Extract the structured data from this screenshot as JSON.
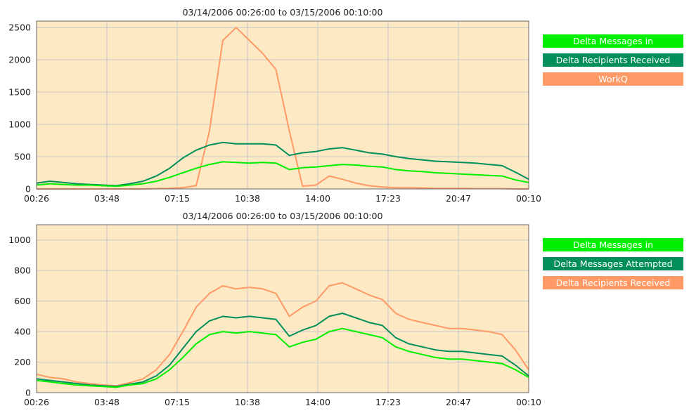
{
  "chart_data": [
    {
      "type": "line",
      "title": "03/14/2006 00:26:00 to 03/15/2006 00:10:00",
      "x": [
        "00:26",
        "01:00",
        "01:40",
        "02:20",
        "03:00",
        "03:48",
        "04:20",
        "05:00",
        "05:40",
        "06:20",
        "07:15",
        "08:00",
        "08:40",
        "09:20",
        "10:00",
        "10:38",
        "11:10",
        "11:40",
        "12:20",
        "12:40",
        "13:00",
        "13:20",
        "14:00",
        "14:40",
        "15:20",
        "16:00",
        "16:40",
        "17:23",
        "18:00",
        "18:40",
        "19:20",
        "20:00",
        "20:47",
        "21:20",
        "22:00",
        "22:40",
        "23:20",
        "00:10"
      ],
      "x_ticks": [
        "00:26",
        "03:48",
        "07:15",
        "10:38",
        "14:00",
        "17:23",
        "20:47",
        "00:10"
      ],
      "ylim": [
        0,
        2600
      ],
      "y_ticks": [
        0,
        500,
        1000,
        1500,
        2000,
        2500
      ],
      "grid": true,
      "legend_position": "right",
      "series": [
        {
          "name": "Delta Messages in",
          "color": "#00ee00",
          "values": [
            60,
            80,
            70,
            60,
            60,
            50,
            40,
            60,
            80,
            120,
            180,
            250,
            320,
            380,
            420,
            410,
            400,
            410,
            400,
            300,
            330,
            340,
            360,
            380,
            370,
            350,
            340,
            300,
            280,
            270,
            250,
            240,
            230,
            220,
            210,
            200,
            140,
            100
          ]
        },
        {
          "name": "Delta Recipients Received",
          "color": "#008f5a",
          "values": [
            90,
            120,
            100,
            80,
            70,
            60,
            50,
            80,
            120,
            200,
            320,
            480,
            600,
            680,
            720,
            700,
            700,
            700,
            680,
            520,
            560,
            580,
            620,
            640,
            600,
            560,
            540,
            500,
            470,
            450,
            430,
            420,
            410,
            400,
            380,
            360,
            260,
            150
          ]
        },
        {
          "name": "WorkQ",
          "color": "#ff9966",
          "values": [
            0,
            0,
            0,
            0,
            0,
            0,
            0,
            0,
            0,
            5,
            10,
            20,
            50,
            900,
            2300,
            2500,
            2300,
            2100,
            1850,
            900,
            40,
            60,
            200,
            150,
            90,
            50,
            30,
            20,
            20,
            15,
            10,
            10,
            10,
            5,
            5,
            5,
            0,
            0
          ]
        }
      ]
    },
    {
      "type": "line",
      "title": "03/14/2006 00:26:00 to 03/15/2006 00:10:00",
      "x": [
        "00:26",
        "01:00",
        "01:40",
        "02:20",
        "03:00",
        "03:48",
        "04:20",
        "05:00",
        "05:40",
        "06:20",
        "07:15",
        "08:00",
        "08:40",
        "09:20",
        "10:00",
        "10:38",
        "11:10",
        "11:40",
        "12:20",
        "12:40",
        "13:00",
        "13:20",
        "14:00",
        "14:40",
        "15:20",
        "16:00",
        "16:40",
        "17:23",
        "18:00",
        "18:40",
        "19:20",
        "20:00",
        "20:47",
        "21:20",
        "22:00",
        "22:40",
        "23:20",
        "00:10"
      ],
      "x_ticks": [
        "00:26",
        "03:48",
        "07:15",
        "10:38",
        "14:00",
        "17:23",
        "20:47",
        "00:10"
      ],
      "ylim": [
        0,
        1100
      ],
      "y_ticks": [
        0,
        200,
        400,
        600,
        800,
        1000
      ],
      "grid": true,
      "legend_position": "right",
      "series": [
        {
          "name": "Delta Messages in",
          "color": "#00ee00",
          "values": [
            80,
            70,
            60,
            50,
            45,
            40,
            35,
            50,
            60,
            90,
            150,
            230,
            320,
            380,
            400,
            390,
            400,
            390,
            380,
            300,
            330,
            350,
            400,
            420,
            400,
            380,
            360,
            300,
            270,
            250,
            230,
            220,
            220,
            210,
            200,
            190,
            150,
            100
          ]
        },
        {
          "name": "Delta Messages Attempted",
          "color": "#008f5a",
          "values": [
            90,
            80,
            70,
            60,
            50,
            45,
            40,
            55,
            70,
            110,
            180,
            290,
            400,
            470,
            500,
            490,
            500,
            490,
            480,
            370,
            410,
            440,
            500,
            520,
            490,
            460,
            440,
            360,
            320,
            300,
            280,
            270,
            270,
            260,
            250,
            240,
            180,
            110
          ]
        },
        {
          "name": "Delta Recipients Received",
          "color": "#ff9966",
          "values": [
            120,
            100,
            90,
            70,
            60,
            50,
            45,
            65,
            90,
            150,
            250,
            400,
            560,
            650,
            700,
            680,
            690,
            680,
            650,
            500,
            560,
            600,
            700,
            720,
            680,
            640,
            610,
            520,
            480,
            460,
            440,
            420,
            420,
            410,
            400,
            380,
            280,
            150
          ]
        }
      ]
    }
  ]
}
